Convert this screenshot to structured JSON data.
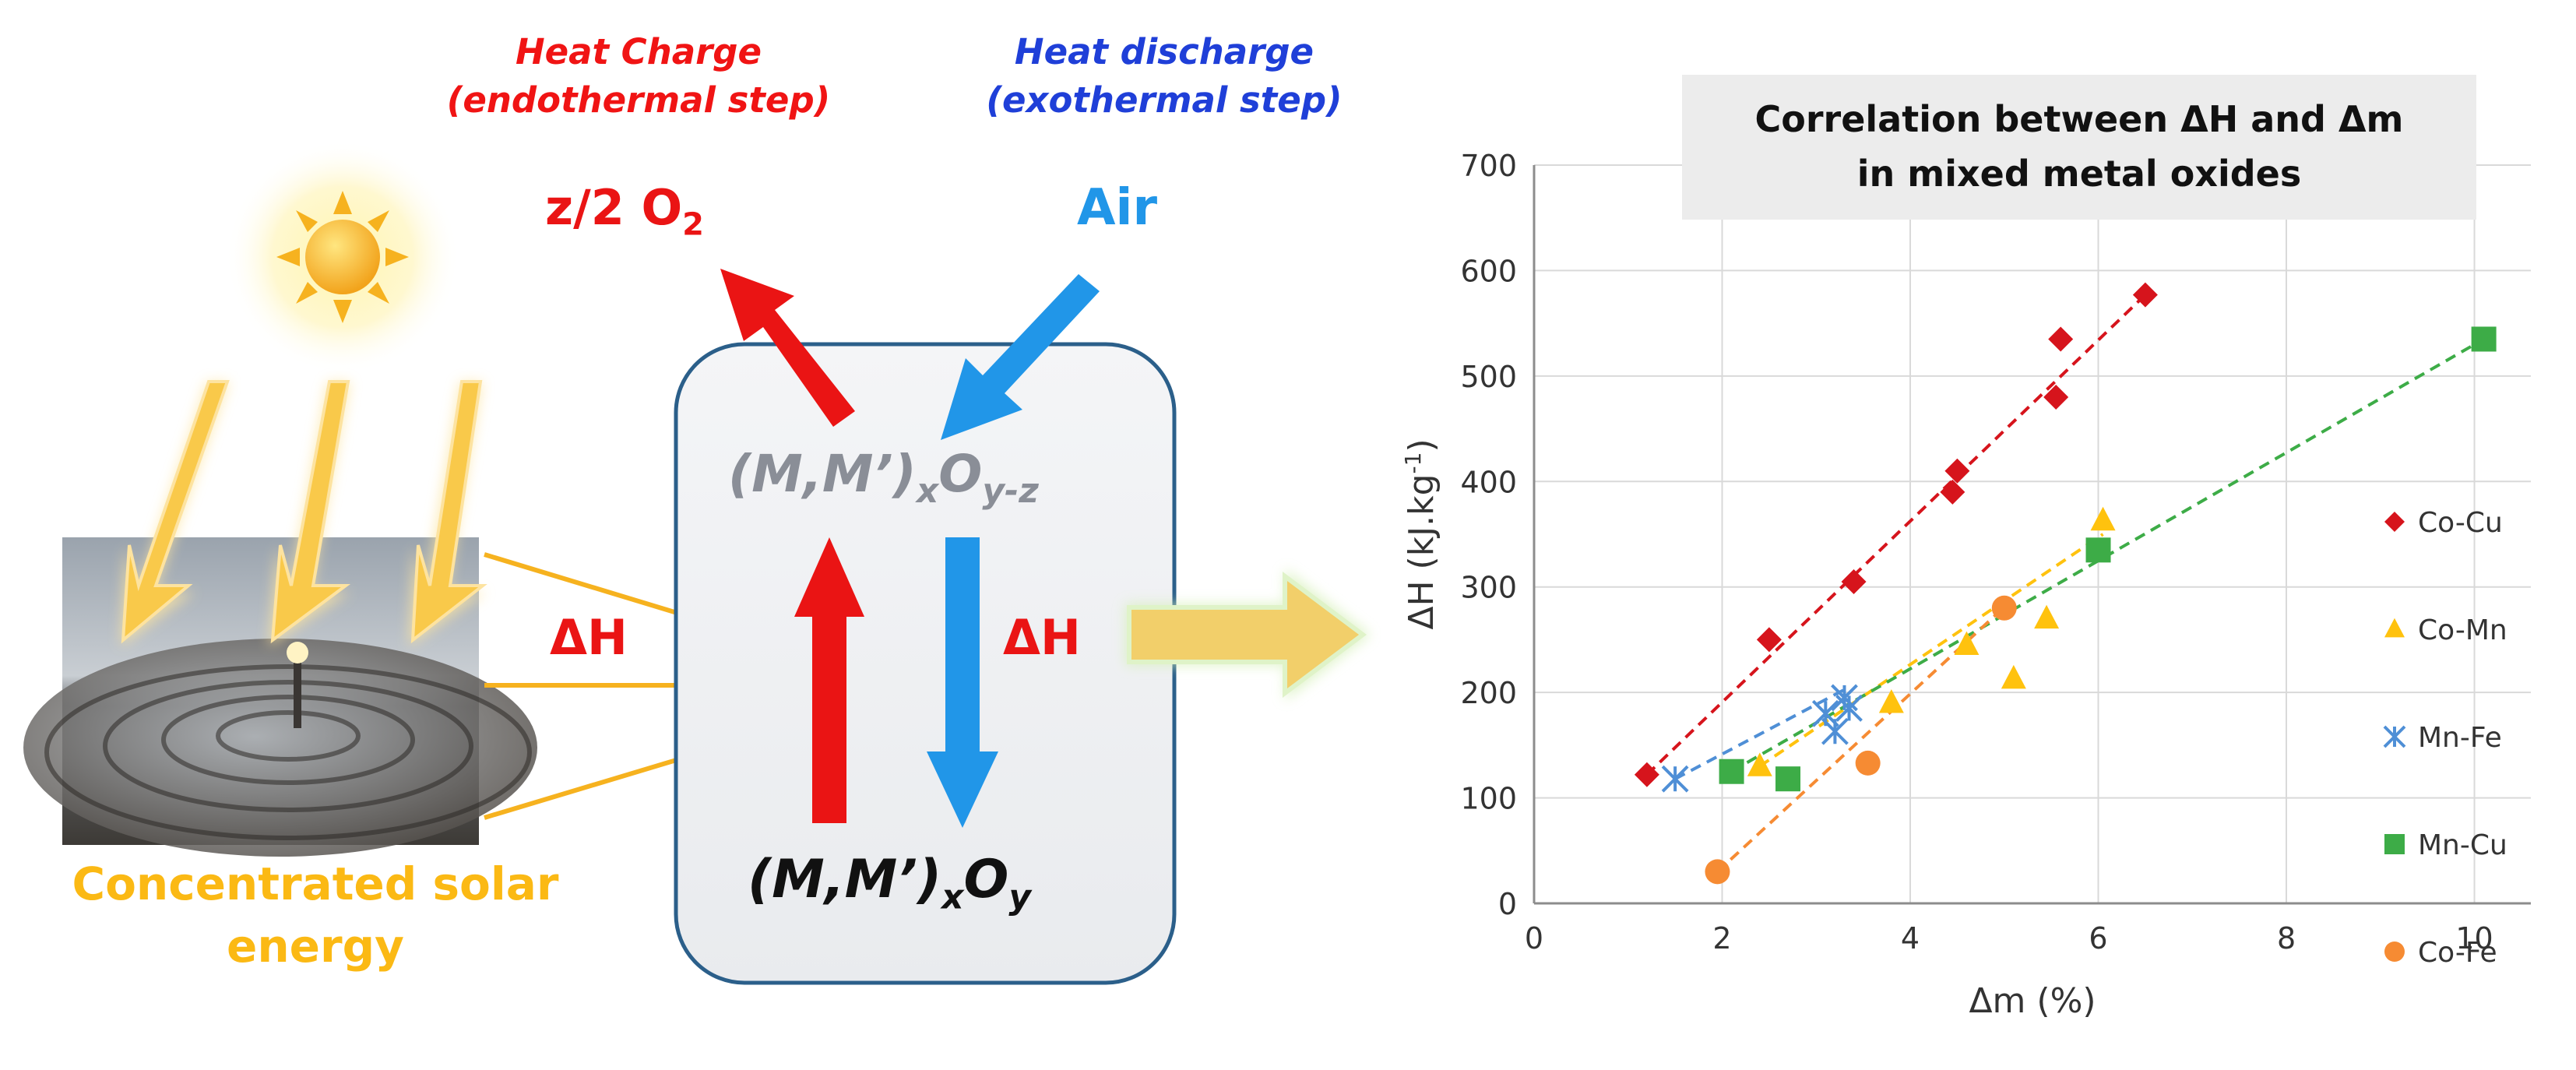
{
  "diagram": {
    "heat_charge_line1": "Heat Charge",
    "heat_charge_line2": "(endothermal step)",
    "heat_discharge_line1": "Heat discharge",
    "heat_discharge_line2": "(exothermal step)",
    "product_o2": "z/2 O",
    "product_o2_sub": "2",
    "reactant_air": "Air",
    "oxide_top_main": "(M,M’)",
    "oxide_top_sub1": "x",
    "oxide_top_mid": "O",
    "oxide_top_sub2": "y-z",
    "oxide_bottom_main": "(M,M’)",
    "oxide_bottom_sub1": "x",
    "oxide_bottom_mid": "O",
    "oxide_bottom_sub2": "y",
    "delta_h_left": "ΔH",
    "delta_h_right": "ΔH",
    "solar_line1": "Concentrated solar",
    "solar_line2": "energy",
    "colors": {
      "charge": "#ea1414",
      "discharge": "#2196e8",
      "solar": "#fbb914",
      "reactor_border": "#2b5f8a"
    }
  },
  "chart_data": {
    "type": "scatter",
    "title": "Correlation between ΔH and Δm in mixed metal oxides",
    "title_line1": "Correlation between ΔH and Δm",
    "title_line2": "in mixed metal oxides",
    "xlabel": "Δm (%)",
    "ylabel": "ΔH (kJ.kg",
    "ylabel_sup": "-1",
    "ylabel_close": ")",
    "xlim": [
      0,
      10.6
    ],
    "ylim": [
      0,
      700
    ],
    "xticks": [
      0,
      2,
      4,
      6,
      8,
      10
    ],
    "xtick_labels": [
      "0",
      "2",
      "4",
      "6",
      "8",
      "10"
    ],
    "yticks": [
      0,
      100,
      200,
      300,
      400,
      500,
      600,
      700
    ],
    "ytick_labels": [
      "0",
      "100",
      "200",
      "300",
      "400",
      "500",
      "600",
      "700"
    ],
    "grid": true,
    "legend_position": "right",
    "series": [
      {
        "name": "Co-Cu",
        "marker": "diamond",
        "color": "#d6141c",
        "x": [
          1.2,
          2.5,
          3.4,
          4.45,
          4.5,
          5.55,
          5.6,
          6.5
        ],
        "y": [
          122,
          250,
          305,
          390,
          410,
          480,
          535,
          577
        ],
        "trend": [
          [
            1.2,
            122
          ],
          [
            6.5,
            577
          ]
        ]
      },
      {
        "name": "Co-Mn",
        "marker": "triangle",
        "color": "#ffc20e",
        "x": [
          2.4,
          3.8,
          4.6,
          5.1,
          5.45,
          6.05
        ],
        "y": [
          130,
          190,
          245,
          213,
          270,
          363
        ],
        "trend": [
          [
            2.4,
            130
          ],
          [
            6.05,
            350
          ]
        ]
      },
      {
        "name": "Mn-Fe",
        "marker": "asterisk",
        "color": "#4f8fd6",
        "x": [
          1.5,
          3.1,
          3.2,
          3.3,
          3.35
        ],
        "y": [
          118,
          180,
          163,
          195,
          185
        ],
        "trend": [
          [
            1.5,
            118
          ],
          [
            3.35,
            205
          ]
        ]
      },
      {
        "name": "Mn-Cu",
        "marker": "square",
        "color": "#3dac47",
        "x": [
          2.1,
          2.7,
          6.0,
          10.1
        ],
        "y": [
          125,
          118,
          335,
          535
        ],
        "trend": [
          [
            2.1,
            125
          ],
          [
            10.1,
            535
          ]
        ]
      },
      {
        "name": "Co-Fe",
        "marker": "circle",
        "color": "#f68b33",
        "x": [
          1.95,
          3.55,
          5.0
        ],
        "y": [
          30,
          133,
          280
        ],
        "trend": [
          [
            1.95,
            30
          ],
          [
            5.05,
            285
          ]
        ]
      }
    ]
  }
}
